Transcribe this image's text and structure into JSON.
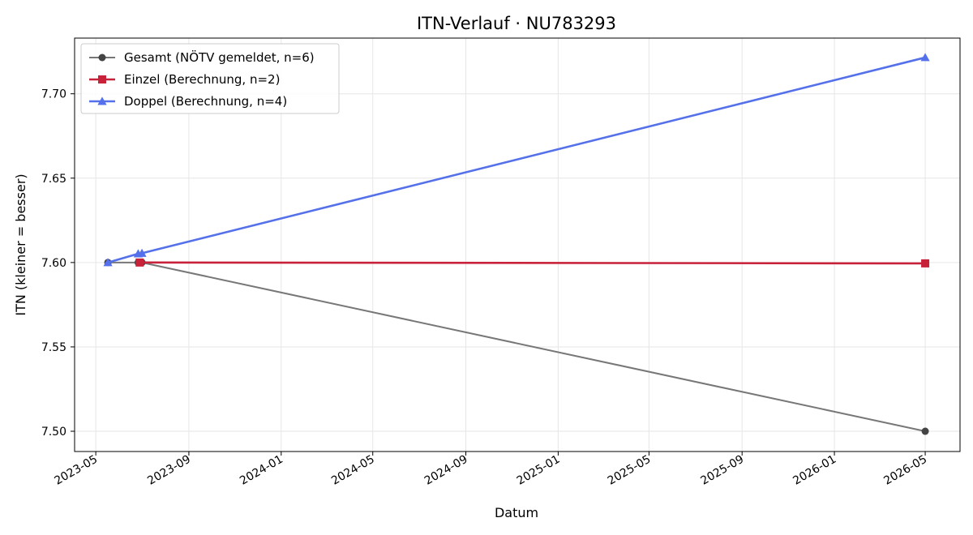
{
  "chart_data": {
    "type": "line",
    "title": "ITN-Verlauf · NU783293",
    "xlabel": "Datum",
    "ylabel": "ITN  (kleiner = besser)",
    "x_axis_type": "date",
    "xlim": [
      "2023-04-03",
      "2026-06-16"
    ],
    "ylim": [
      7.488,
      7.733
    ],
    "x_ticks": [
      "2023-05-01",
      "2023-09-01",
      "2024-01-01",
      "2024-05-01",
      "2024-09-01",
      "2025-01-01",
      "2025-05-01",
      "2025-09-01",
      "2026-01-01",
      "2026-05-01"
    ],
    "x_tick_labels": [
      "2023-05",
      "2023-09",
      "2024-01",
      "2024-05",
      "2024-09",
      "2025-01",
      "2025-05",
      "2025-09",
      "2026-01",
      "2026-05"
    ],
    "y_ticks": [
      7.5,
      7.55,
      7.6,
      7.65,
      7.7
    ],
    "y_tick_labels": [
      "7.50",
      "7.55",
      "7.60",
      "7.65",
      "7.70"
    ],
    "grid": true,
    "legend_position": "top-left",
    "series": [
      {
        "name": "Gesamt (NÖTV gemeldet, n=6)",
        "color": "#777777",
        "marker": "circle",
        "points": [
          {
            "x": "2023-05-17",
            "y": 7.6
          },
          {
            "x": "2023-06-26",
            "y": 7.6
          },
          {
            "x": "2023-06-28",
            "y": 7.6
          },
          {
            "x": "2023-06-29",
            "y": 7.6
          },
          {
            "x": "2023-07-01",
            "y": 7.6
          },
          {
            "x": "2026-05-01",
            "y": 7.5
          }
        ]
      },
      {
        "name": "Einzel (Berechnung, n=2)",
        "color": "#c8213a",
        "marker": "square",
        "points": [
          {
            "x": "2023-06-28",
            "y": 7.6
          },
          {
            "x": "2026-05-01",
            "y": 7.5995
          }
        ]
      },
      {
        "name": "Doppel (Berechnung, n=4)",
        "color": "#5470ea",
        "marker": "triangle",
        "points": [
          {
            "x": "2023-05-17",
            "y": 7.6
          },
          {
            "x": "2023-06-26",
            "y": 7.6052
          },
          {
            "x": "2023-07-01",
            "y": 7.6055
          },
          {
            "x": "2026-05-01",
            "y": 7.7215
          }
        ]
      }
    ]
  }
}
